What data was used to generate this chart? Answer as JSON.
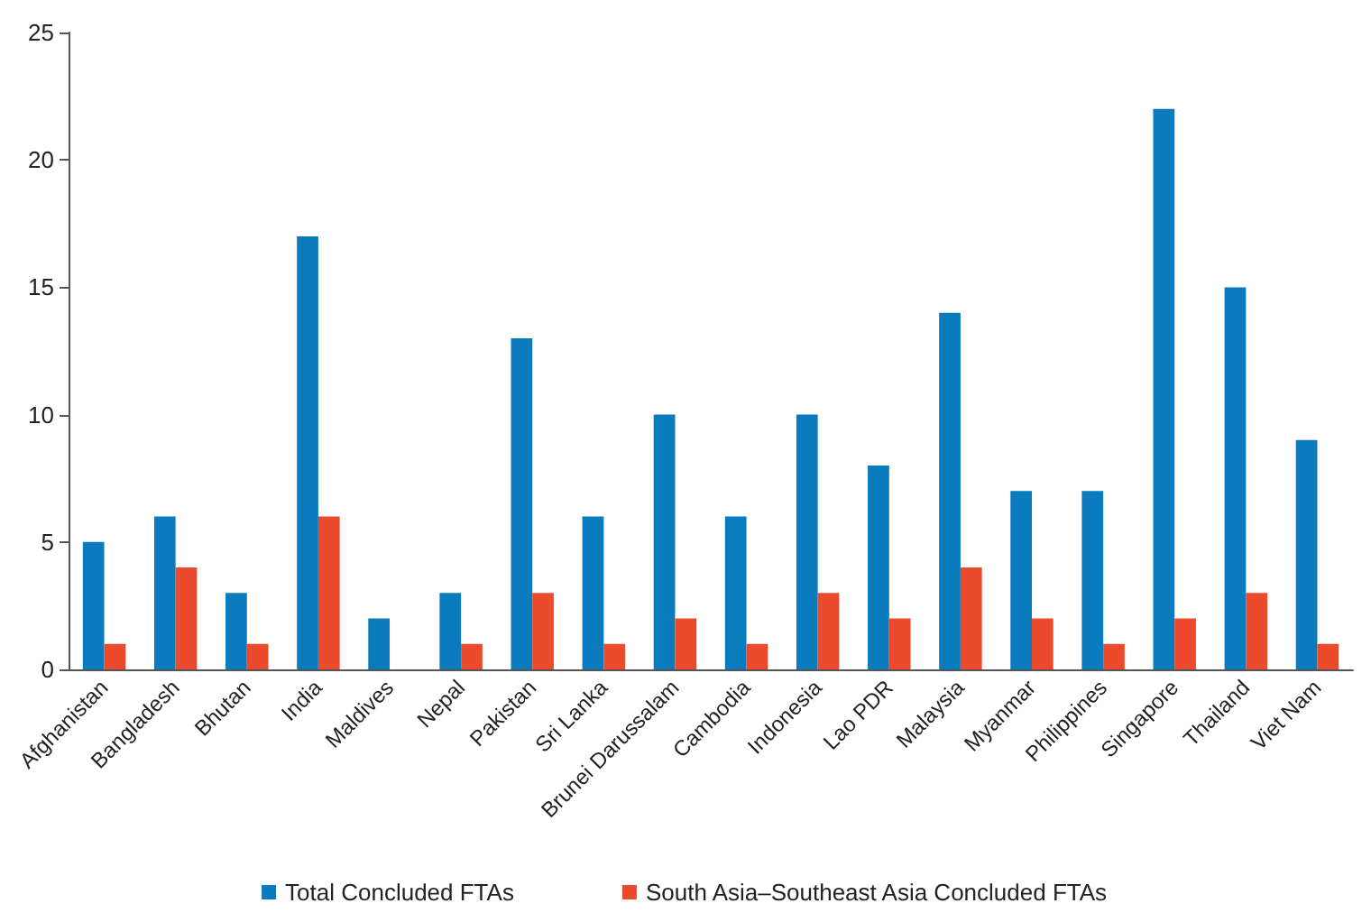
{
  "chart_data": {
    "type": "bar",
    "categories": [
      "Afghanistan",
      "Bangladesh",
      "Bhutan",
      "India",
      "Maldives",
      "Nepal",
      "Pakistan",
      "Sri Lanka",
      "Brunei Darussalam",
      "Cambodia",
      "Indonesia",
      "Lao PDR",
      "Malaysia",
      "Myanmar",
      "Philippines",
      "Singapore",
      "Thailand",
      "Viet Nam"
    ],
    "series": [
      {
        "name": "Total Concluded FTAs",
        "color": "#0a7bbd",
        "values": [
          5,
          6,
          3,
          17,
          2,
          3,
          13,
          6,
          10,
          6,
          10,
          8,
          14,
          7,
          7,
          22,
          15,
          9
        ]
      },
      {
        "name": "South Asia–Southeast Asia Concluded FTAs",
        "color": "#ec4a2c",
        "values": [
          1,
          4,
          1,
          6,
          0,
          1,
          3,
          1,
          2,
          1,
          3,
          2,
          4,
          2,
          1,
          2,
          3,
          1
        ]
      }
    ],
    "ylim": [
      0,
      25
    ],
    "yticks": [
      0,
      5,
      10,
      15,
      20,
      25
    ],
    "grid": false,
    "legend": "bottom"
  }
}
